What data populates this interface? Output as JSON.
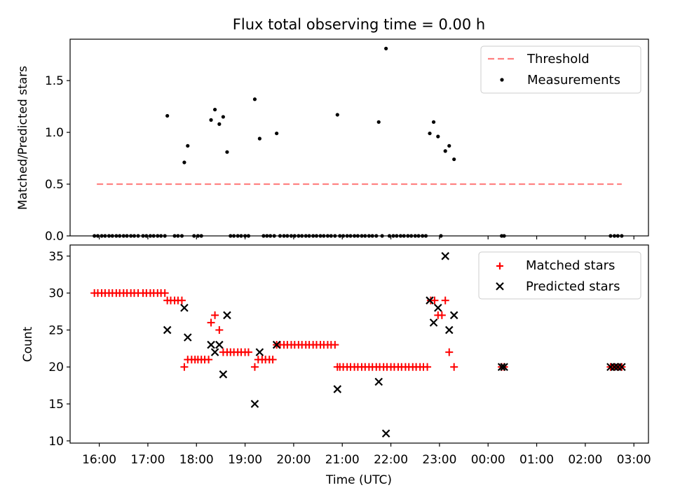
{
  "figure_title": "Flux total observing time = 0.00 h",
  "x_axis_label": "Time (UTC)",
  "x_tick_labels": [
    "16:00",
    "17:00",
    "18:00",
    "19:00",
    "20:00",
    "21:00",
    "22:00",
    "23:00",
    "00:00",
    "01:00",
    "02:00",
    "03:00"
  ],
  "colors": {
    "threshold": "#ff7f7f",
    "matched": "#ff0000",
    "predicted": "#000000",
    "measurement": "#000000"
  },
  "chart_data": [
    {
      "type": "scatter",
      "title": "Flux total observing time = 0.00 h",
      "xlabel": "",
      "ylabel": "Matched/Predicted stars",
      "xlim": [
        15.4,
        27.3
      ],
      "ylim": [
        0,
        1.9
      ],
      "y_ticks": [
        0.0,
        0.5,
        1.0,
        1.5
      ],
      "y_tick_labels": [
        "0.0",
        "0.5",
        "1.0",
        "1.5"
      ],
      "legend": {
        "location": "top-right",
        "entries": [
          "Threshold",
          "Measurements"
        ]
      },
      "threshold": {
        "name": "Threshold",
        "x": [
          15.95,
          26.75
        ],
        "y": 0.5
      },
      "series": [
        {
          "name": "Measurements",
          "x": [
            15.9,
            15.97,
            16.05,
            16.12,
            16.2,
            16.27,
            16.35,
            16.42,
            16.5,
            16.57,
            16.65,
            16.72,
            16.8,
            16.9,
            16.97,
            17.05,
            17.12,
            17.2,
            17.27,
            17.35,
            17.4,
            17.55,
            17.62,
            17.7,
            17.75,
            17.82,
            17.95,
            18.03,
            18.1,
            18.3,
            18.38,
            18.47,
            18.55,
            18.63,
            18.7,
            18.77,
            18.85,
            18.92,
            19.0,
            19.07,
            19.2,
            19.3,
            19.38,
            19.45,
            19.52,
            19.6,
            19.65,
            19.72,
            19.8,
            19.87,
            19.95,
            20.02,
            20.1,
            20.17,
            20.25,
            20.32,
            20.4,
            20.47,
            20.55,
            20.62,
            20.7,
            20.77,
            20.85,
            20.9,
            20.95,
            21.02,
            21.1,
            21.17,
            21.25,
            21.32,
            21.4,
            21.47,
            21.55,
            21.62,
            21.7,
            21.75,
            21.82,
            21.9,
            21.97,
            22.05,
            22.12,
            22.2,
            22.27,
            22.35,
            22.42,
            22.5,
            22.57,
            22.65,
            22.72,
            22.8,
            22.88,
            22.97,
            23.03,
            23.12,
            23.2,
            23.3,
            24.28,
            24.33,
            26.52,
            26.6,
            26.67,
            26.75
          ],
          "y": [
            0,
            0,
            0,
            0,
            0,
            0,
            0,
            0,
            0,
            0,
            0,
            0,
            0,
            0,
            0,
            0,
            0,
            0,
            0,
            0,
            1.16,
            0,
            0,
            0,
            0.71,
            0.87,
            0,
            0,
            0,
            1.12,
            1.22,
            1.08,
            1.15,
            0.81,
            0,
            0,
            0,
            0,
            0,
            0,
            1.32,
            0.94,
            0,
            0,
            0,
            0,
            0.99,
            0,
            0,
            0,
            0,
            0,
            0,
            0,
            0,
            0,
            0,
            0,
            0,
            0,
            0,
            0,
            0,
            1.17,
            0,
            0,
            0,
            0,
            0,
            0,
            0,
            0,
            0,
            0,
            0,
            1.1,
            0,
            1.81,
            0,
            0,
            0,
            0,
            0,
            0,
            0,
            0,
            0,
            0,
            0,
            0.99,
            1.1,
            0.96,
            0,
            0.82,
            0.87,
            0.74,
            0,
            0,
            0,
            0,
            0,
            0
          ]
        }
      ]
    },
    {
      "type": "scatter",
      "title": "",
      "xlabel": "Time (UTC)",
      "ylabel": "Count",
      "xlim": [
        15.4,
        27.3
      ],
      "ylim": [
        9.7,
        36.5
      ],
      "y_ticks": [
        10,
        15,
        20,
        25,
        30,
        35
      ],
      "y_tick_labels": [
        "10",
        "15",
        "20",
        "25",
        "30",
        "35"
      ],
      "x_ticks": [
        16,
        17,
        18,
        19,
        20,
        21,
        22,
        23,
        24,
        25,
        26,
        27
      ],
      "legend": {
        "location": "top-right",
        "entries": [
          "Matched stars",
          "Predicted stars"
        ]
      },
      "series": [
        {
          "name": "Matched stars",
          "x": [
            15.9,
            15.97,
            16.05,
            16.12,
            16.2,
            16.27,
            16.35,
            16.42,
            16.5,
            16.57,
            16.65,
            16.72,
            16.8,
            16.9,
            16.97,
            17.05,
            17.12,
            17.2,
            17.27,
            17.35,
            17.4,
            17.47,
            17.55,
            17.62,
            17.7,
            17.75,
            17.82,
            17.9,
            17.97,
            18.03,
            18.1,
            18.17,
            18.25,
            18.3,
            18.38,
            18.47,
            18.55,
            18.63,
            18.7,
            18.77,
            18.85,
            18.92,
            19.0,
            19.07,
            19.2,
            19.27,
            19.35,
            19.42,
            19.5,
            19.57,
            19.65,
            19.72,
            19.8,
            19.87,
            19.95,
            20.02,
            20.1,
            20.17,
            20.25,
            20.32,
            20.4,
            20.47,
            20.55,
            20.62,
            20.7,
            20.77,
            20.85,
            20.9,
            20.95,
            21.02,
            21.1,
            21.17,
            21.25,
            21.32,
            21.4,
            21.47,
            21.55,
            21.62,
            21.7,
            21.77,
            21.85,
            21.92,
            22.0,
            22.07,
            22.15,
            22.22,
            22.3,
            22.37,
            22.45,
            22.52,
            22.6,
            22.67,
            22.75,
            22.82,
            22.9,
            22.97,
            23.05,
            23.12,
            23.2,
            23.3,
            24.28,
            24.33,
            26.52,
            26.6,
            26.67,
            26.75
          ],
          "y": [
            30,
            30,
            30,
            30,
            30,
            30,
            30,
            30,
            30,
            30,
            30,
            30,
            30,
            30,
            30,
            30,
            30,
            30,
            30,
            30,
            29,
            29,
            29,
            29,
            29,
            20,
            21,
            21,
            21,
            21,
            21,
            21,
            21,
            26,
            27,
            25,
            22,
            22,
            22,
            22,
            22,
            22,
            22,
            22,
            20,
            21,
            21,
            21,
            21,
            21,
            23,
            23,
            23,
            23,
            23,
            23,
            23,
            23,
            23,
            23,
            23,
            23,
            23,
            23,
            23,
            23,
            23,
            20,
            20,
            20,
            20,
            20,
            20,
            20,
            20,
            20,
            20,
            20,
            20,
            20,
            20,
            20,
            20,
            20,
            20,
            20,
            20,
            20,
            20,
            20,
            20,
            20,
            20,
            29,
            29,
            27,
            27,
            29,
            22,
            20,
            20,
            20,
            20,
            20,
            20,
            20
          ]
        },
        {
          "name": "Predicted stars",
          "x": [
            17.4,
            17.75,
            17.82,
            18.3,
            18.38,
            18.47,
            18.55,
            18.63,
            19.2,
            19.3,
            19.65,
            20.9,
            21.75,
            21.9,
            22.8,
            22.88,
            22.97,
            23.12,
            23.2,
            23.3,
            24.28,
            24.33,
            26.52,
            26.6,
            26.67,
            26.75
          ],
          "y": [
            25,
            28,
            24,
            23,
            22,
            23,
            19,
            27,
            15,
            22,
            23,
            17,
            18,
            11,
            29,
            26,
            28,
            35,
            25,
            27,
            20,
            20,
            20,
            20,
            20,
            20
          ]
        }
      ]
    }
  ]
}
